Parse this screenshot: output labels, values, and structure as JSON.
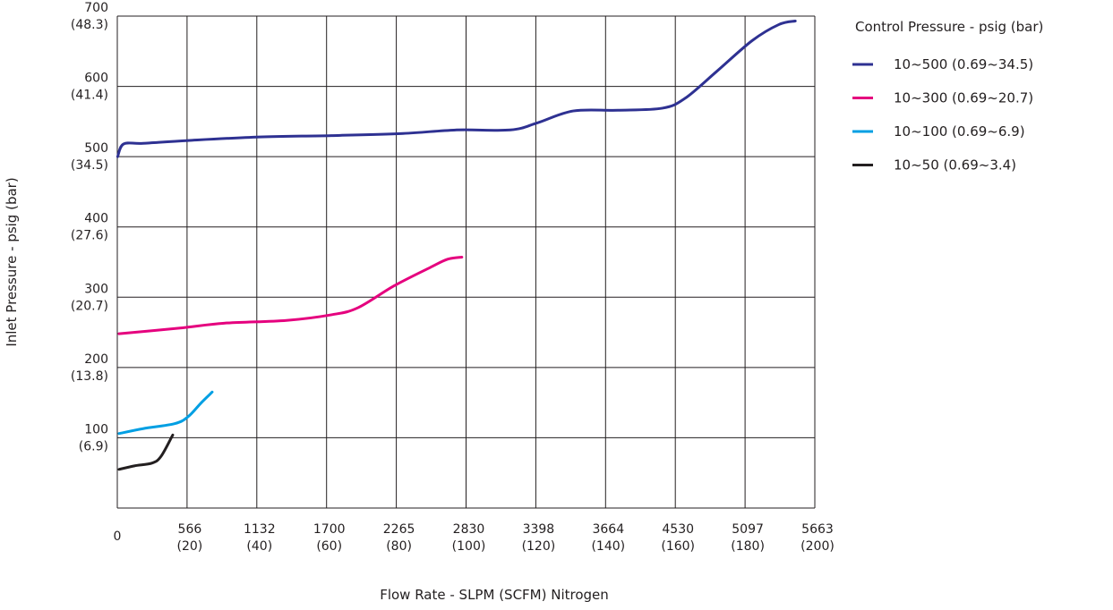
{
  "chart_data": {
    "type": "line",
    "xlabel": "Flow Rate - SLPM (SCFM) Nitrogen",
    "ylabel": "Inlet Pressure - psig (bar)",
    "legend_title": "Control Pressure - psig (bar)",
    "legend_position": "right",
    "grid": true,
    "xlim": [
      0,
      200
    ],
    "xticks": [
      0,
      {
        "value": 20,
        "label": "566\n(20)"
      },
      {
        "value": 40,
        "label": "1132\n(40)"
      },
      {
        "value": 60,
        "label": "1700\n(60)"
      },
      {
        "value": 80,
        "label": "2265\n(80)"
      },
      {
        "value": 100,
        "label": "2830\n(100)"
      },
      {
        "value": 120,
        "label": "3398\n(120)"
      },
      {
        "value": 140,
        "label": "3664\n(140)"
      },
      {
        "value": 160,
        "label": "4530\n(160)"
      },
      {
        "value": 180,
        "label": "5097\n(180)"
      },
      {
        "value": 200,
        "label": "5663\n(200)"
      }
    ],
    "ylim": [
      0,
      700
    ],
    "yticks": [
      {
        "value": 100,
        "label": "100\n(6.9)"
      },
      {
        "value": 200,
        "label": "200\n(13.8)"
      },
      {
        "value": 300,
        "label": "300\n(20.7)"
      },
      {
        "value": 400,
        "label": "400\n(27.6)"
      },
      {
        "value": 500,
        "label": "500\n(34.5)"
      },
      {
        "value": 600,
        "label": "600\n(41.4)"
      },
      {
        "value": 700,
        "label": "700\n(48.3)"
      }
    ],
    "series": [
      {
        "name": "10~500 (0.69~34.5)",
        "color": "#2e3192",
        "x": [
          0.1,
          1.8,
          7.4,
          20.3,
          40.8,
          61.4,
          81.9,
          97.3,
          112.7,
          120.4,
          130.7,
          143.5,
          156.3,
          162.8,
          171.8,
          182,
          189.7,
          194.4
        ],
        "values": [
          500,
          518,
          519,
          523,
          528,
          530,
          533,
          538,
          538,
          548,
          565,
          566,
          569,
          583,
          621,
          665,
          688,
          693
        ]
      },
      {
        "name": "10~300 (0.69~20.7)",
        "color": "#e5007e",
        "x": [
          0.5,
          17.7,
          30.6,
          48.5,
          61.4,
          69,
          79.3,
          89.6,
          94.7,
          98.8
        ],
        "values": [
          248,
          256,
          263,
          267,
          275,
          285,
          316,
          342,
          354,
          357
        ]
      },
      {
        "name": "10~100 (0.69~6.9)",
        "color": "#009fe3",
        "x": [
          0.5,
          7.4,
          16.4,
          20.3,
          24.1,
          27.2
        ],
        "values": [
          106,
          113,
          120,
          130,
          150,
          165
        ]
      },
      {
        "name": "10~50 (0.69~3.4)",
        "color": "#231f20",
        "x": [
          0.5,
          4.9,
          10,
          12.6,
          15.9
        ],
        "values": [
          55,
          60,
          64,
          74,
          104
        ]
      }
    ]
  }
}
